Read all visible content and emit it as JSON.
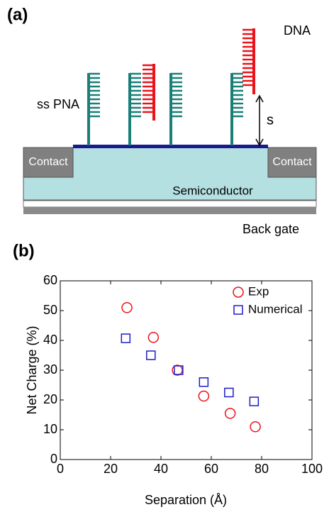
{
  "panel_a": {
    "label": "(a)",
    "dna": "DNA",
    "ss_pna": "ss PNA",
    "separation": "s",
    "contact_left": "Contact",
    "contact_right": "Contact",
    "semiconductor": "Semiconductor",
    "back_gate": "Back gate"
  },
  "panel_b": {
    "label": "(b)"
  },
  "chart_data": {
    "type": "scatter",
    "xlabel": "Separation (Å)",
    "ylabel": "Net Charge (%)",
    "xlim": [
      0,
      100
    ],
    "xticks": [
      0,
      20,
      40,
      60,
      80,
      100
    ],
    "ylim": [
      0,
      60
    ],
    "yticks": [
      0,
      10,
      20,
      30,
      40,
      50,
      60
    ],
    "legend": "upper right",
    "series": [
      {
        "name": "Exp",
        "color": "#e8141b",
        "marker": "circle",
        "x": [
          26.5,
          37,
          46.5,
          57,
          67.5,
          77.5
        ],
        "values": [
          51,
          41,
          30,
          21.3,
          15.5,
          11
        ]
      },
      {
        "name": "Numerical",
        "color": "#1c1cc8",
        "marker": "square",
        "x": [
          26,
          36,
          47,
          57,
          67,
          77
        ],
        "values": [
          40.7,
          35,
          30,
          26,
          22.5,
          19.5
        ]
      }
    ]
  }
}
